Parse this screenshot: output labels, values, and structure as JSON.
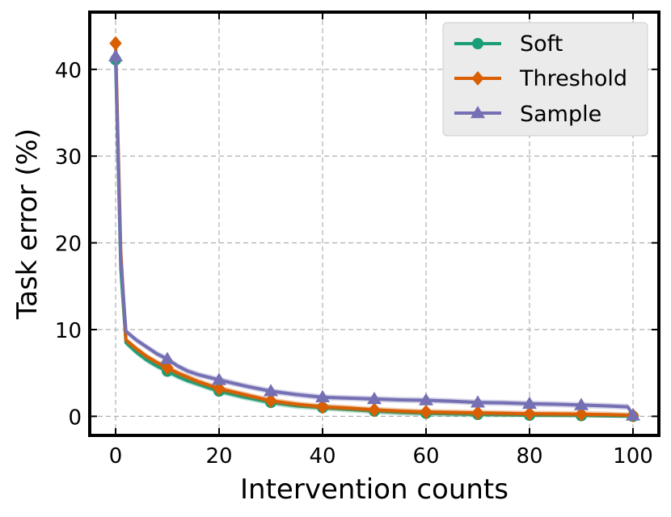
{
  "chart_data": {
    "type": "line",
    "title": "",
    "xlabel": "Intervention counts",
    "ylabel": "Task error (%)",
    "xlim": [
      -5,
      105
    ],
    "ylim": [
      -2.2,
      46.6
    ],
    "xticks": [
      0,
      20,
      40,
      60,
      80,
      100
    ],
    "yticks": [
      0,
      10,
      20,
      30,
      40
    ],
    "grid": true,
    "legend_position": "top-right",
    "series": [
      {
        "name": "Soft",
        "color": "#1b9e77",
        "marker": "circle",
        "x": [
          0,
          1,
          2,
          4,
          6,
          8,
          10,
          12,
          14,
          16,
          18,
          20,
          25,
          30,
          35,
          40,
          45,
          50,
          55,
          60,
          65,
          70,
          75,
          80,
          85,
          90,
          95,
          100
        ],
        "y": [
          41.1,
          17.0,
          8.5,
          7.4,
          6.5,
          5.8,
          5.2,
          4.6,
          4.1,
          3.7,
          3.3,
          2.9,
          2.2,
          1.6,
          1.2,
          1.0,
          0.8,
          0.6,
          0.45,
          0.35,
          0.28,
          0.22,
          0.18,
          0.12,
          0.1,
          0.08,
          0.04,
          0.0
        ],
        "marker_x": [
          0,
          10,
          20,
          30,
          40,
          50,
          60,
          70,
          80,
          90,
          100
        ]
      },
      {
        "name": "Threshold",
        "color": "#d95f02",
        "marker": "diamond",
        "x": [
          0,
          1,
          2,
          4,
          6,
          8,
          10,
          12,
          14,
          16,
          18,
          20,
          25,
          30,
          35,
          40,
          45,
          50,
          55,
          60,
          65,
          70,
          75,
          80,
          85,
          90,
          95,
          100
        ],
        "y": [
          43.0,
          19.0,
          8.8,
          7.8,
          6.9,
          6.2,
          5.6,
          5.0,
          4.5,
          4.0,
          3.6,
          3.2,
          2.5,
          1.8,
          1.4,
          1.1,
          0.95,
          0.75,
          0.6,
          0.5,
          0.45,
          0.4,
          0.35,
          0.3,
          0.28,
          0.25,
          0.2,
          0.1
        ],
        "marker_x": [
          0,
          10,
          20,
          30,
          40,
          50,
          60,
          70,
          80,
          90,
          100
        ]
      },
      {
        "name": "Sample",
        "color": "#7570b3",
        "marker": "triangle",
        "x": [
          0,
          1,
          2,
          4,
          6,
          8,
          10,
          12,
          14,
          16,
          18,
          20,
          25,
          30,
          35,
          40,
          45,
          50,
          55,
          60,
          65,
          70,
          75,
          80,
          85,
          90,
          95,
          99,
          100
        ],
        "y": [
          41.5,
          18.0,
          9.8,
          8.8,
          8.0,
          7.2,
          6.6,
          5.8,
          5.2,
          4.8,
          4.5,
          4.2,
          3.5,
          2.9,
          2.5,
          2.2,
          2.1,
          2.0,
          1.9,
          1.85,
          1.75,
          1.6,
          1.55,
          1.45,
          1.4,
          1.3,
          1.2,
          1.1,
          0.1
        ],
        "marker_x": [
          0,
          10,
          20,
          30,
          40,
          50,
          60,
          70,
          80,
          90,
          100
        ]
      }
    ]
  }
}
